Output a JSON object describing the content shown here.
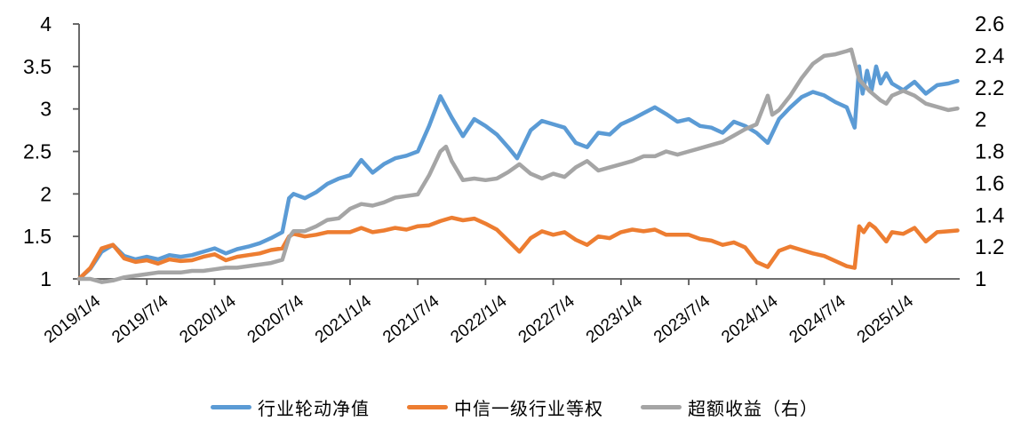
{
  "chart_data": {
    "type": "line",
    "title": "",
    "grid": false,
    "legend_position": "bottom",
    "axis_color": "#595959",
    "text_color": "#000000",
    "background_color": "#ffffff",
    "x_axis": {
      "unit": "months since 2019/1/4",
      "months_total": 78,
      "labels": [
        "2019/1/4",
        "2019/7/4",
        "2020/1/4",
        "2020/7/4",
        "2021/1/4",
        "2021/7/4",
        "2022/1/4",
        "2022/7/4",
        "2023/1/4",
        "2023/7/4",
        "2024/1/4",
        "2024/7/4",
        "2025/1/4"
      ],
      "label_months": [
        0,
        6,
        12,
        18,
        24,
        30,
        36,
        42,
        48,
        54,
        60,
        66,
        72
      ]
    },
    "y_left": {
      "min": 1,
      "max": 4,
      "tick_values": [
        1,
        1.5,
        2,
        2.5,
        3,
        3.5,
        4
      ],
      "tick_labels": [
        "1",
        "1.5",
        "2",
        "2.5",
        "3",
        "3.5",
        "4"
      ]
    },
    "y_right": {
      "min": 1,
      "max": 2.6,
      "tick_values": [
        1,
        1.2,
        1.4,
        1.6,
        1.8,
        2,
        2.2,
        2.4,
        2.6
      ],
      "tick_labels": [
        "1",
        "1.2",
        "1.4",
        "1.6",
        "1.8",
        "2",
        "2.2",
        "2.4",
        "2.6"
      ]
    },
    "series": [
      {
        "name": "行业轮动净值",
        "color": "#5B9BD5",
        "axis": "left",
        "points": [
          [
            0,
            1.0
          ],
          [
            1,
            1.12
          ],
          [
            2,
            1.32
          ],
          [
            3,
            1.4
          ],
          [
            4,
            1.27
          ],
          [
            5,
            1.23
          ],
          [
            6,
            1.26
          ],
          [
            7,
            1.23
          ],
          [
            8,
            1.28
          ],
          [
            9,
            1.26
          ],
          [
            10,
            1.28
          ],
          [
            11,
            1.32
          ],
          [
            12,
            1.36
          ],
          [
            13,
            1.3
          ],
          [
            14,
            1.35
          ],
          [
            15,
            1.38
          ],
          [
            16,
            1.42
          ],
          [
            17,
            1.48
          ],
          [
            18,
            1.55
          ],
          [
            18.6,
            1.95
          ],
          [
            19,
            2.0
          ],
          [
            20,
            1.95
          ],
          [
            21,
            2.02
          ],
          [
            22,
            2.12
          ],
          [
            23,
            2.18
          ],
          [
            24,
            2.22
          ],
          [
            25,
            2.4
          ],
          [
            26,
            2.25
          ],
          [
            27,
            2.35
          ],
          [
            28,
            2.42
          ],
          [
            29,
            2.45
          ],
          [
            30,
            2.5
          ],
          [
            31,
            2.8
          ],
          [
            32,
            3.15
          ],
          [
            33,
            2.9
          ],
          [
            34,
            2.68
          ],
          [
            35,
            2.88
          ],
          [
            36,
            2.8
          ],
          [
            37,
            2.7
          ],
          [
            38,
            2.55
          ],
          [
            38.8,
            2.42
          ],
          [
            40,
            2.75
          ],
          [
            41,
            2.86
          ],
          [
            42,
            2.82
          ],
          [
            43,
            2.78
          ],
          [
            44,
            2.6
          ],
          [
            45,
            2.55
          ],
          [
            46,
            2.72
          ],
          [
            47,
            2.7
          ],
          [
            48,
            2.82
          ],
          [
            49,
            2.88
          ],
          [
            50,
            2.95
          ],
          [
            51,
            3.02
          ],
          [
            52,
            2.94
          ],
          [
            53,
            2.85
          ],
          [
            54,
            2.88
          ],
          [
            55,
            2.8
          ],
          [
            56,
            2.78
          ],
          [
            57,
            2.72
          ],
          [
            58,
            2.85
          ],
          [
            59,
            2.8
          ],
          [
            60,
            2.72
          ],
          [
            61,
            2.6
          ],
          [
            62,
            2.88
          ],
          [
            63,
            3.02
          ],
          [
            64,
            3.14
          ],
          [
            65,
            3.2
          ],
          [
            66,
            3.16
          ],
          [
            67,
            3.08
          ],
          [
            68,
            3.02
          ],
          [
            68.7,
            2.78
          ],
          [
            69.1,
            3.5
          ],
          [
            69.4,
            3.18
          ],
          [
            69.8,
            3.45
          ],
          [
            70.2,
            3.22
          ],
          [
            70.6,
            3.5
          ],
          [
            71,
            3.3
          ],
          [
            71.5,
            3.42
          ],
          [
            72,
            3.3
          ],
          [
            73,
            3.22
          ],
          [
            74,
            3.32
          ],
          [
            75,
            3.18
          ],
          [
            76,
            3.28
          ],
          [
            77,
            3.3
          ],
          [
            77.8,
            3.33
          ]
        ]
      },
      {
        "name": "中信一级行业等权",
        "color": "#ED7D31",
        "axis": "left",
        "points": [
          [
            0,
            1.0
          ],
          [
            1,
            1.13
          ],
          [
            2,
            1.36
          ],
          [
            3,
            1.4
          ],
          [
            4,
            1.24
          ],
          [
            5,
            1.2
          ],
          [
            6,
            1.22
          ],
          [
            7,
            1.18
          ],
          [
            8,
            1.23
          ],
          [
            9,
            1.21
          ],
          [
            10,
            1.22
          ],
          [
            11,
            1.26
          ],
          [
            12,
            1.29
          ],
          [
            13,
            1.22
          ],
          [
            14,
            1.26
          ],
          [
            15,
            1.28
          ],
          [
            16,
            1.3
          ],
          [
            17,
            1.34
          ],
          [
            18,
            1.36
          ],
          [
            18.6,
            1.5
          ],
          [
            19,
            1.53
          ],
          [
            20,
            1.5
          ],
          [
            21,
            1.52
          ],
          [
            22,
            1.55
          ],
          [
            23,
            1.55
          ],
          [
            24,
            1.55
          ],
          [
            25,
            1.6
          ],
          [
            26,
            1.55
          ],
          [
            27,
            1.57
          ],
          [
            28,
            1.6
          ],
          [
            29,
            1.58
          ],
          [
            30,
            1.62
          ],
          [
            31,
            1.63
          ],
          [
            32,
            1.68
          ],
          [
            33,
            1.72
          ],
          [
            34,
            1.69
          ],
          [
            35,
            1.71
          ],
          [
            36,
            1.65
          ],
          [
            37,
            1.58
          ],
          [
            38,
            1.45
          ],
          [
            39,
            1.32
          ],
          [
            40,
            1.48
          ],
          [
            41,
            1.56
          ],
          [
            42,
            1.52
          ],
          [
            43,
            1.55
          ],
          [
            44,
            1.46
          ],
          [
            45,
            1.4
          ],
          [
            46,
            1.5
          ],
          [
            47,
            1.48
          ],
          [
            48,
            1.55
          ],
          [
            49,
            1.58
          ],
          [
            50,
            1.56
          ],
          [
            51,
            1.58
          ],
          [
            52,
            1.52
          ],
          [
            53,
            1.52
          ],
          [
            54,
            1.52
          ],
          [
            55,
            1.47
          ],
          [
            56,
            1.45
          ],
          [
            57,
            1.4
          ],
          [
            58,
            1.43
          ],
          [
            59,
            1.37
          ],
          [
            60,
            1.2
          ],
          [
            61,
            1.14
          ],
          [
            62,
            1.33
          ],
          [
            63,
            1.38
          ],
          [
            64,
            1.34
          ],
          [
            65,
            1.3
          ],
          [
            66,
            1.27
          ],
          [
            67,
            1.21
          ],
          [
            68,
            1.15
          ],
          [
            68.7,
            1.13
          ],
          [
            69.1,
            1.62
          ],
          [
            69.5,
            1.55
          ],
          [
            70,
            1.65
          ],
          [
            70.5,
            1.6
          ],
          [
            71,
            1.52
          ],
          [
            71.5,
            1.44
          ],
          [
            72,
            1.55
          ],
          [
            73,
            1.53
          ],
          [
            74,
            1.6
          ],
          [
            75,
            1.44
          ],
          [
            76,
            1.55
          ],
          [
            77,
            1.56
          ],
          [
            77.8,
            1.57
          ]
        ]
      },
      {
        "name": "超额收益（右）",
        "color": "#A5A5A5",
        "axis": "right",
        "points": [
          [
            0,
            1.0
          ],
          [
            1,
            1.0
          ],
          [
            2,
            0.98
          ],
          [
            3,
            0.99
          ],
          [
            4,
            1.01
          ],
          [
            5,
            1.02
          ],
          [
            6,
            1.03
          ],
          [
            7,
            1.04
          ],
          [
            8,
            1.04
          ],
          [
            9,
            1.04
          ],
          [
            10,
            1.05
          ],
          [
            11,
            1.05
          ],
          [
            12,
            1.06
          ],
          [
            13,
            1.07
          ],
          [
            14,
            1.07
          ],
          [
            15,
            1.08
          ],
          [
            16,
            1.09
          ],
          [
            17,
            1.1
          ],
          [
            18,
            1.12
          ],
          [
            18.6,
            1.26
          ],
          [
            19,
            1.3
          ],
          [
            20,
            1.3
          ],
          [
            21,
            1.33
          ],
          [
            22,
            1.37
          ],
          [
            23,
            1.38
          ],
          [
            24,
            1.44
          ],
          [
            25,
            1.47
          ],
          [
            26,
            1.46
          ],
          [
            27,
            1.48
          ],
          [
            28,
            1.51
          ],
          [
            29,
            1.52
          ],
          [
            30,
            1.53
          ],
          [
            31,
            1.65
          ],
          [
            32,
            1.8
          ],
          [
            32.5,
            1.83
          ],
          [
            33,
            1.74
          ],
          [
            34,
            1.62
          ],
          [
            35,
            1.63
          ],
          [
            36,
            1.62
          ],
          [
            37,
            1.63
          ],
          [
            38,
            1.67
          ],
          [
            39,
            1.72
          ],
          [
            40,
            1.66
          ],
          [
            41,
            1.63
          ],
          [
            42,
            1.66
          ],
          [
            43,
            1.64
          ],
          [
            44,
            1.7
          ],
          [
            45,
            1.74
          ],
          [
            46,
            1.68
          ],
          [
            47,
            1.7
          ],
          [
            48,
            1.72
          ],
          [
            49,
            1.74
          ],
          [
            50,
            1.77
          ],
          [
            51,
            1.77
          ],
          [
            52,
            1.8
          ],
          [
            53,
            1.78
          ],
          [
            54,
            1.8
          ],
          [
            55,
            1.82
          ],
          [
            56,
            1.84
          ],
          [
            57,
            1.86
          ],
          [
            58,
            1.9
          ],
          [
            59,
            1.94
          ],
          [
            60,
            1.97
          ],
          [
            61,
            2.15
          ],
          [
            61.4,
            2.03
          ],
          [
            62,
            2.06
          ],
          [
            63,
            2.15
          ],
          [
            64,
            2.26
          ],
          [
            65,
            2.35
          ],
          [
            66,
            2.4
          ],
          [
            67,
            2.41
          ],
          [
            68,
            2.43
          ],
          [
            68.4,
            2.44
          ],
          [
            69.1,
            2.25
          ],
          [
            69.5,
            2.22
          ],
          [
            70,
            2.18
          ],
          [
            70.5,
            2.15
          ],
          [
            71,
            2.12
          ],
          [
            71.5,
            2.1
          ],
          [
            72,
            2.15
          ],
          [
            73,
            2.18
          ],
          [
            74,
            2.15
          ],
          [
            75,
            2.1
          ],
          [
            76,
            2.08
          ],
          [
            77,
            2.06
          ],
          [
            77.8,
            2.07
          ]
        ]
      }
    ]
  }
}
